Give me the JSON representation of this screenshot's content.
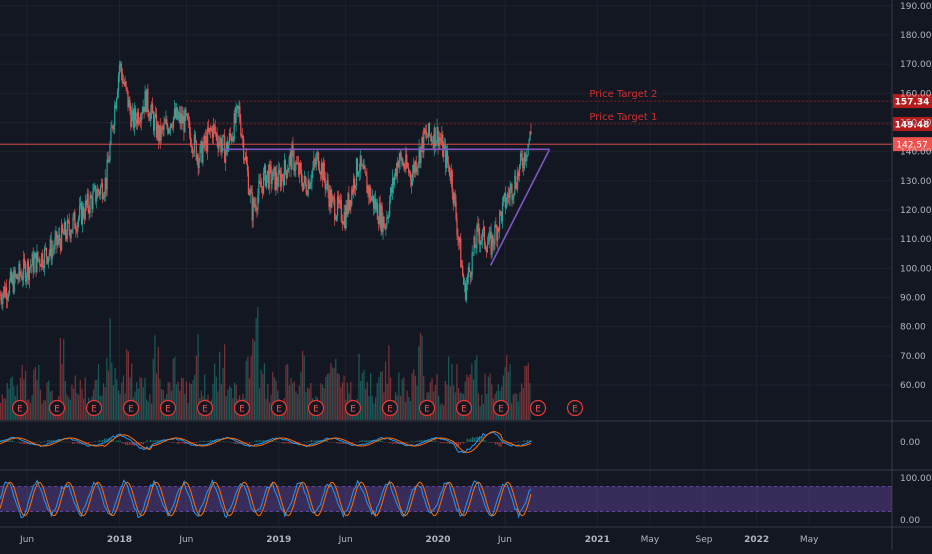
{
  "chart_data": {
    "type": "line",
    "price": {
      "x": [
        "2017-04",
        "2017-06",
        "2017-08",
        "2017-10",
        "2017-12",
        "2018-01",
        "2018-02",
        "2018-03",
        "2018-04",
        "2018-05",
        "2018-06",
        "2018-07",
        "2018-08",
        "2018-09",
        "2018-10",
        "2018-11",
        "2018-12",
        "2019-01",
        "2019-02",
        "2019-03",
        "2019-04",
        "2019-05",
        "2019-06",
        "2019-07",
        "2019-08",
        "2019-09",
        "2019-10",
        "2019-11",
        "2019-12",
        "2020-01",
        "2020-02",
        "2020-03",
        "2020-04",
        "2020-05",
        "2020-06",
        "2020-07",
        "2020-08"
      ],
      "y": [
        91,
        100,
        107,
        118,
        130,
        170,
        150,
        158,
        145,
        152,
        150,
        138,
        148,
        140,
        154,
        120,
        132,
        130,
        138,
        128,
        138,
        122,
        118,
        136,
        124,
        115,
        138,
        132,
        145,
        146,
        132,
        92,
        112,
        108,
        122,
        132,
        146
      ],
      "ylim": [
        48,
        192
      ],
      "yticks": [
        "190.00",
        "180.00",
        "170.00",
        "160.00",
        "150.00",
        "140.00",
        "130.00",
        "120.00",
        "110.00",
        "100.00",
        "90.00",
        "80.00",
        "70.00",
        "60.00"
      ]
    },
    "volume": {
      "values": [
        3,
        5,
        4,
        6,
        3,
        8,
        4,
        5,
        3,
        9,
        4,
        6,
        5,
        3,
        7,
        4,
        12,
        6,
        5,
        8,
        4,
        6,
        3,
        10,
        5,
        4,
        7,
        6,
        4,
        9,
        5,
        3,
        6,
        8,
        4,
        5,
        3,
        7,
        12,
        6,
        4,
        5,
        3,
        6,
        4,
        8,
        5,
        3,
        4,
        6,
        9,
        5,
        4,
        3,
        7,
        5,
        4,
        6,
        8,
        3,
        5,
        4,
        6,
        10,
        4,
        5,
        3,
        7,
        6,
        4,
        5,
        8,
        3,
        6,
        4,
        5,
        7,
        3,
        4,
        6
      ]
    },
    "earnings_labels": [
      "E",
      "E",
      "E",
      "E",
      "E",
      "E",
      "E",
      "E",
      "E",
      "E",
      "E",
      "E",
      "E",
      "E",
      "E",
      "E"
    ],
    "xticks": [
      "Jun",
      "2018",
      "Jun",
      "2019",
      "Jun",
      "2020",
      "Jun",
      "2021",
      "May",
      "Sep",
      "2022",
      "May"
    ],
    "levels": {
      "current": {
        "value": 142.57,
        "label": "142.57",
        "color": "#ef5350"
      },
      "target2": {
        "value": 157.34,
        "label": "157.34",
        "name": "Price Target 2",
        "color": "#b71c1c"
      },
      "target1": {
        "value": 149.48,
        "label": "149.48",
        "name": "Price Target 1",
        "color": "#b71c1c"
      }
    },
    "macd": {
      "tick": "0.00",
      "colors": {
        "macd": "#2196f3",
        "signal": "#ff6d00"
      }
    },
    "stochastic": {
      "ticks": [
        "100.00",
        "0.00"
      ],
      "band": [
        20,
        80
      ],
      "colors": {
        "k": "#2196f3",
        "d": "#ff6d00",
        "band": "#7e57c2"
      }
    },
    "colors": {
      "up": "#26a69a",
      "down": "#ef5350",
      "trendline": "#7e57c2"
    }
  }
}
